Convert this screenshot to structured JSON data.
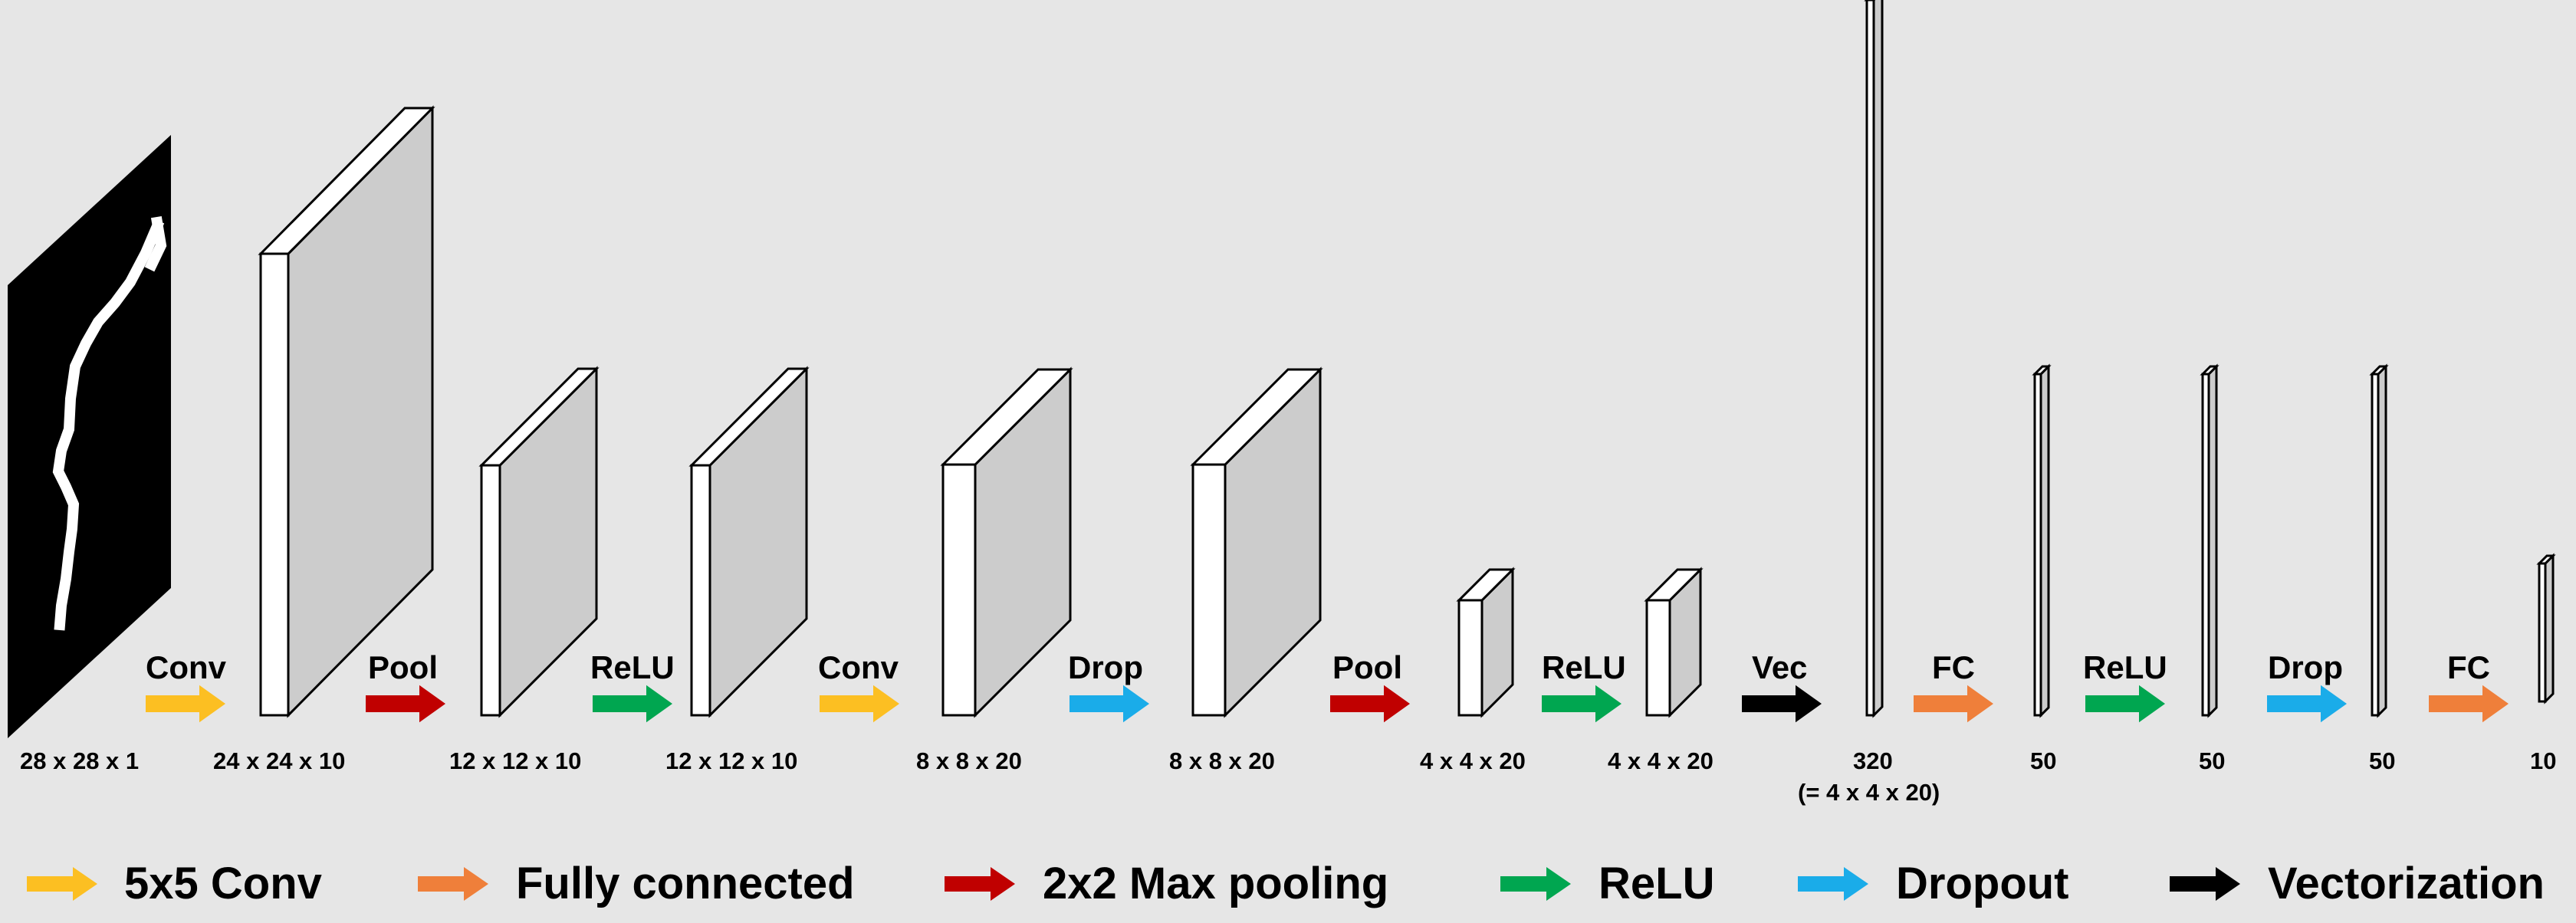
{
  "colors": {
    "background": "#e6e6e6",
    "conv": "#fcbf22",
    "fc": "#ef7f3a",
    "pool": "#c00000",
    "relu": "#00a650",
    "drop": "#1aace9",
    "vec": "#000000",
    "block_front": "#ffffff",
    "block_side": "#cccccc"
  },
  "input_image": {
    "icon": "mnist-digit-5-image",
    "dims": "28 x 28 x 1"
  },
  "layers": [
    {
      "dims": "24 x 24 x 10",
      "sub": ""
    },
    {
      "dims": "12 x 12 x 10",
      "sub": ""
    },
    {
      "dims": "12 x 12 x 10",
      "sub": ""
    },
    {
      "dims": "8 x 8 x 20",
      "sub": ""
    },
    {
      "dims": "8 x 8 x 20",
      "sub": ""
    },
    {
      "dims": "4 x 4 x 20",
      "sub": ""
    },
    {
      "dims": "4 x 4 x 20",
      "sub": ""
    },
    {
      "dims": "320",
      "sub": "(= 4 x 4 x 20)"
    },
    {
      "dims": "50",
      "sub": ""
    },
    {
      "dims": "50",
      "sub": ""
    },
    {
      "dims": "50",
      "sub": ""
    },
    {
      "dims": "10",
      "sub": ""
    }
  ],
  "operations": [
    {
      "label": "Conv",
      "kind": "conv"
    },
    {
      "label": "Pool",
      "kind": "pool"
    },
    {
      "label": "ReLU",
      "kind": "relu"
    },
    {
      "label": "Conv",
      "kind": "conv"
    },
    {
      "label": "Drop",
      "kind": "drop"
    },
    {
      "label": "Pool",
      "kind": "pool"
    },
    {
      "label": "ReLU",
      "kind": "relu"
    },
    {
      "label": "Vec",
      "kind": "vec"
    },
    {
      "label": "FC",
      "kind": "fc"
    },
    {
      "label": "ReLU",
      "kind": "relu"
    },
    {
      "label": "Drop",
      "kind": "drop"
    },
    {
      "label": "FC",
      "kind": "fc"
    }
  ],
  "legend": [
    {
      "label": "5x5 Conv",
      "kind": "conv"
    },
    {
      "label": "Fully connected",
      "kind": "fc"
    },
    {
      "label": "2x2 Max pooling",
      "kind": "pool"
    },
    {
      "label": "ReLU",
      "kind": "relu"
    },
    {
      "label": "Dropout",
      "kind": "drop"
    },
    {
      "label": "Vectorization",
      "kind": "vec"
    }
  ]
}
